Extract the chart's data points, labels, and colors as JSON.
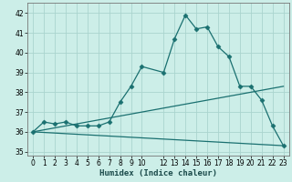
{
  "xlabel": "Humidex (Indice chaleur)",
  "bg_color": "#cceee8",
  "grid_color": "#aad4ce",
  "line_color": "#1a7070",
  "xlim": [
    -0.5,
    23.5
  ],
  "ylim": [
    34.8,
    42.5
  ],
  "yticks": [
    35,
    36,
    37,
    38,
    39,
    40,
    41,
    42
  ],
  "xticks": [
    0,
    1,
    2,
    3,
    4,
    5,
    6,
    7,
    8,
    9,
    10,
    12,
    13,
    14,
    15,
    16,
    17,
    18,
    19,
    20,
    21,
    22,
    23
  ],
  "xtick_labels": [
    "0",
    "1",
    "2",
    "3",
    "4",
    "5",
    "6",
    "7",
    "8",
    "9",
    "10",
    "12",
    "13",
    "14",
    "15",
    "16",
    "17",
    "18",
    "19",
    "20",
    "21",
    "22",
    "23"
  ],
  "line1_x": [
    0,
    1,
    2,
    3,
    4,
    5,
    6,
    7,
    8,
    9,
    10,
    12,
    13,
    14,
    15,
    16,
    17,
    18,
    19,
    20,
    21,
    22,
    23
  ],
  "line1_y": [
    36.0,
    36.5,
    36.4,
    36.5,
    36.3,
    36.3,
    36.3,
    36.5,
    37.5,
    38.3,
    39.3,
    39.0,
    40.7,
    41.9,
    41.2,
    41.3,
    40.3,
    39.8,
    38.3,
    38.3,
    37.6,
    36.3,
    35.3
  ],
  "line2_x": [
    0,
    23
  ],
  "line2_y": [
    36.0,
    35.3
  ],
  "line3_x": [
    0,
    23
  ],
  "line3_y": [
    36.0,
    38.3
  ],
  "marker": "D",
  "markersize": 2.5,
  "linewidth": 0.9
}
